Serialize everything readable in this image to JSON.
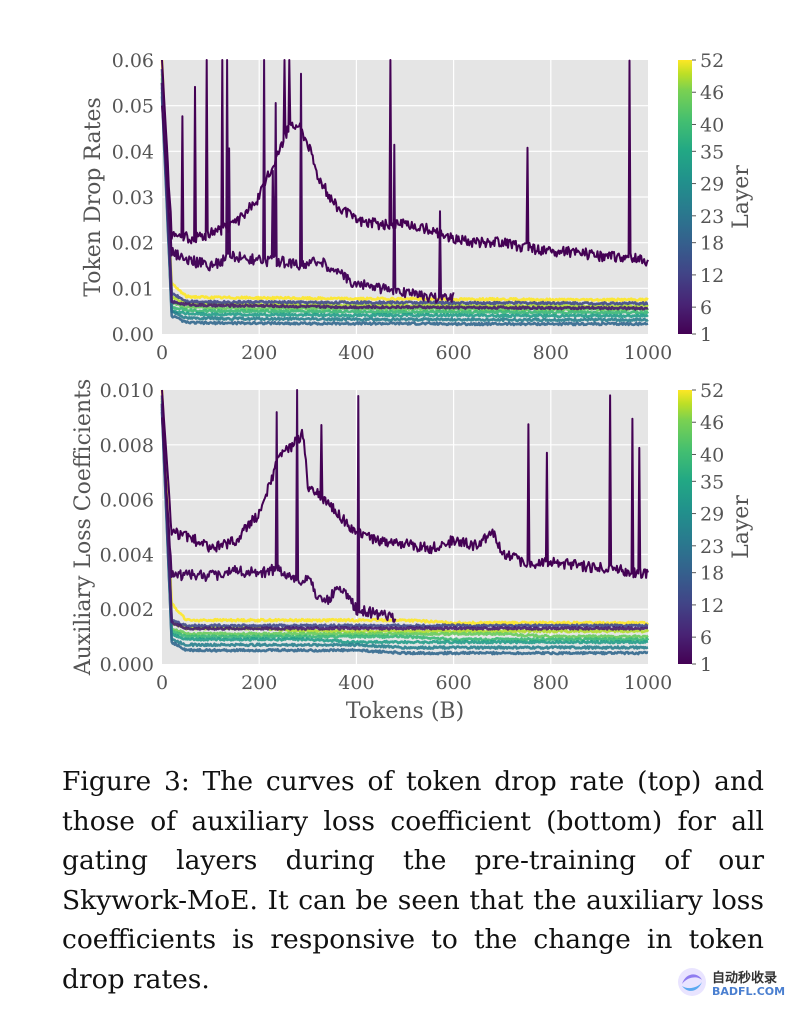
{
  "chart_data": [
    {
      "type": "line",
      "ylabel": "Token Drop Rates",
      "xlabel": "",
      "xlim": [
        0,
        1000
      ],
      "ylim": [
        0,
        0.06
      ],
      "x_ticks": [
        "0",
        "200",
        "400",
        "600",
        "800",
        "1000"
      ],
      "y_ticks": [
        "0.00",
        "0.01",
        "0.02",
        "0.03",
        "0.04",
        "0.05",
        "0.06"
      ],
      "grid": true,
      "colorbar": {
        "label": "Layer",
        "ticks": [
          "1",
          "6",
          "12",
          "18",
          "23",
          "29",
          "35",
          "40",
          "46",
          "52"
        ]
      },
      "series": [
        {
          "layer": 1,
          "x": [
            0,
            20,
            60,
            100,
            150,
            200,
            240,
            260,
            280,
            300,
            320,
            340,
            360,
            400,
            450,
            500,
            550,
            600,
            650,
            700,
            750,
            800,
            850,
            900,
            950,
            1000
          ],
          "values": [
            0.06,
            0.022,
            0.021,
            0.022,
            0.024,
            0.03,
            0.04,
            0.045,
            0.046,
            0.042,
            0.035,
            0.031,
            0.028,
            0.025,
            0.024,
            0.024,
            0.023,
            0.021,
            0.02,
            0.02,
            0.019,
            0.018,
            0.018,
            0.017,
            0.017,
            0.016
          ]
        },
        {
          "layer": 2,
          "x": [
            0,
            20,
            60,
            100,
            150,
            200,
            240,
            280,
            320,
            340,
            360,
            380,
            400,
            500,
            560,
            600
          ],
          "values": [
            0.05,
            0.018,
            0.016,
            0.015,
            0.017,
            0.016,
            0.016,
            0.015,
            0.016,
            0.015,
            0.014,
            0.012,
            0.011,
            0.009,
            0.008,
            0.008
          ]
        },
        {
          "layer": 5,
          "x": [
            0,
            20,
            50,
            100,
            200,
            300,
            400,
            500,
            600,
            700,
            800,
            900,
            1000
          ],
          "values": [
            0.055,
            0.007,
            0.0065,
            0.0062,
            0.0062,
            0.006,
            0.0059,
            0.0059,
            0.0058,
            0.0058,
            0.0057,
            0.0057,
            0.0056
          ]
        },
        {
          "layer": 12,
          "x": [
            0,
            20,
            50,
            100,
            200,
            300,
            400,
            500,
            600,
            700,
            800,
            900,
            1000
          ],
          "values": [
            0.058,
            0.009,
            0.0072,
            0.007,
            0.007,
            0.0069,
            0.0069,
            0.0069,
            0.0068,
            0.0068,
            0.0068,
            0.0067,
            0.0067
          ]
        },
        {
          "layer": 18,
          "x": [
            0,
            20,
            50,
            100,
            200,
            300,
            400,
            500,
            600,
            700,
            800,
            900,
            1000
          ],
          "values": [
            0.052,
            0.004,
            0.0025,
            0.0024,
            0.0024,
            0.0023,
            0.0023,
            0.0023,
            0.0022,
            0.0022,
            0.0022,
            0.0022,
            0.0022
          ]
        },
        {
          "layer": 23,
          "x": [
            0,
            20,
            50,
            100,
            200,
            300,
            400,
            500,
            600,
            700,
            800,
            900,
            1000
          ],
          "values": [
            0.054,
            0.005,
            0.0035,
            0.0034,
            0.0033,
            0.0033,
            0.0032,
            0.0032,
            0.0032,
            0.0031,
            0.0031,
            0.0031,
            0.0031
          ]
        },
        {
          "layer": 29,
          "x": [
            0,
            20,
            50,
            100,
            200,
            300,
            400,
            500,
            600,
            700,
            800,
            900,
            1000
          ],
          "values": [
            0.053,
            0.005,
            0.0045,
            0.0043,
            0.0042,
            0.0042,
            0.0041,
            0.0041,
            0.0041,
            0.004,
            0.004,
            0.004,
            0.004
          ]
        },
        {
          "layer": 35,
          "x": [
            0,
            20,
            50,
            100,
            200,
            300,
            400,
            500,
            600,
            700,
            800,
            900,
            1000
          ],
          "values": [
            0.055,
            0.006,
            0.0052,
            0.005,
            0.005,
            0.0049,
            0.0049,
            0.0048,
            0.0048,
            0.0048,
            0.0047,
            0.0047,
            0.0047
          ]
        },
        {
          "layer": 40,
          "x": [
            0,
            20,
            50,
            100,
            200,
            300,
            400,
            500,
            600,
            700,
            800,
            900,
            1000
          ],
          "values": [
            0.056,
            0.007,
            0.0058,
            0.0057,
            0.0056,
            0.0056,
            0.0055,
            0.0055,
            0.0055,
            0.0054,
            0.0054,
            0.0054,
            0.0054
          ]
        },
        {
          "layer": 46,
          "x": [
            0,
            20,
            50,
            100,
            200,
            300,
            400,
            500,
            600,
            700,
            800,
            900,
            1000
          ],
          "values": [
            0.057,
            0.008,
            0.0066,
            0.0065,
            0.0064,
            0.0064,
            0.0063,
            0.0063,
            0.0062,
            0.0062,
            0.0062,
            0.0062,
            0.0061
          ]
        },
        {
          "layer": 52,
          "x": [
            0,
            20,
            50,
            100,
            200,
            300,
            400,
            500,
            600,
            700,
            800,
            900,
            1000
          ],
          "values": [
            0.06,
            0.011,
            0.0082,
            0.008,
            0.0079,
            0.0078,
            0.0077,
            0.0077,
            0.0076,
            0.0076,
            0.0075,
            0.0075,
            0.0075
          ]
        }
      ]
    },
    {
      "type": "line",
      "ylabel": "Auxiliary Loss Coefficients",
      "xlabel": "Tokens (B)",
      "xlim": [
        0,
        1000
      ],
      "ylim": [
        0,
        0.01
      ],
      "x_ticks": [
        "0",
        "200",
        "400",
        "600",
        "800",
        "1000"
      ],
      "y_ticks": [
        "0.000",
        "0.002",
        "0.004",
        "0.006",
        "0.008",
        "0.010"
      ],
      "grid": true,
      "colorbar": {
        "label": "Layer",
        "ticks": [
          "1",
          "6",
          "12",
          "18",
          "23",
          "29",
          "35",
          "40",
          "46",
          "52"
        ]
      },
      "series": [
        {
          "layer": 1,
          "x": [
            0,
            20,
            60,
            100,
            150,
            200,
            240,
            270,
            290,
            300,
            320,
            360,
            400,
            450,
            500,
            550,
            600,
            650,
            680,
            700,
            750,
            800,
            850,
            900,
            950,
            1000
          ],
          "values": [
            0.01,
            0.0048,
            0.0046,
            0.0042,
            0.0045,
            0.0055,
            0.0075,
            0.008,
            0.0084,
            0.0065,
            0.0062,
            0.0055,
            0.0048,
            0.0045,
            0.0044,
            0.0042,
            0.0045,
            0.0043,
            0.0048,
            0.004,
            0.0037,
            0.0037,
            0.0036,
            0.0035,
            0.0034,
            0.0033
          ]
        },
        {
          "layer": 2,
          "x": [
            0,
            20,
            60,
            100,
            150,
            200,
            240,
            260,
            280,
            300,
            320,
            340,
            360,
            380,
            400,
            450,
            480
          ],
          "values": [
            0.009,
            0.0032,
            0.0033,
            0.0032,
            0.0034,
            0.0033,
            0.0035,
            0.0032,
            0.003,
            0.0031,
            0.0025,
            0.0023,
            0.0028,
            0.0025,
            0.002,
            0.0018,
            0.0017
          ]
        },
        {
          "layer": 5,
          "x": [
            0,
            20,
            50,
            100,
            200,
            300,
            400,
            500,
            600,
            700,
            800,
            900,
            1000
          ],
          "values": [
            0.0095,
            0.0015,
            0.0013,
            0.0013,
            0.0013,
            0.0013,
            0.0013,
            0.0013,
            0.0013,
            0.0013,
            0.0013,
            0.0013,
            0.0013
          ]
        },
        {
          "layer": 12,
          "x": [
            0,
            20,
            50,
            100,
            200,
            300,
            400,
            500,
            600,
            700,
            800,
            900,
            1000
          ],
          "values": [
            0.0098,
            0.0016,
            0.0014,
            0.0014,
            0.0014,
            0.0014,
            0.0014,
            0.0014,
            0.0014,
            0.0014,
            0.0014,
            0.0014,
            0.0014
          ]
        },
        {
          "layer": 18,
          "x": [
            0,
            20,
            50,
            100,
            200,
            300,
            400,
            500,
            600,
            700,
            800,
            900,
            1000
          ],
          "values": [
            0.0092,
            0.0008,
            0.0005,
            0.0005,
            0.0005,
            0.0005,
            0.0005,
            0.0004,
            0.0004,
            0.0004,
            0.0004,
            0.0004,
            0.0004
          ]
        },
        {
          "layer": 23,
          "x": [
            0,
            20,
            50,
            100,
            200,
            300,
            400,
            500,
            600,
            700,
            800,
            900,
            1000
          ],
          "values": [
            0.0093,
            0.0009,
            0.0007,
            0.0007,
            0.0007,
            0.0007,
            0.0007,
            0.0006,
            0.0006,
            0.0006,
            0.0006,
            0.0006,
            0.0006
          ]
        },
        {
          "layer": 29,
          "x": [
            0,
            20,
            50,
            100,
            200,
            300,
            400,
            500,
            600,
            700,
            800,
            900,
            1000
          ],
          "values": [
            0.0094,
            0.0011,
            0.0009,
            0.0009,
            0.0009,
            0.0009,
            0.0008,
            0.0008,
            0.0008,
            0.0008,
            0.0008,
            0.0008,
            0.0008
          ]
        },
        {
          "layer": 35,
          "x": [
            0,
            20,
            50,
            100,
            200,
            300,
            400,
            500,
            600,
            700,
            800,
            900,
            1000
          ],
          "values": [
            0.0095,
            0.0012,
            0.001,
            0.001,
            0.001,
            0.001,
            0.001,
            0.001,
            0.0009,
            0.0009,
            0.0009,
            0.0009,
            0.0009
          ]
        },
        {
          "layer": 40,
          "x": [
            0,
            20,
            50,
            100,
            200,
            300,
            400,
            500,
            600,
            700,
            800,
            900,
            1000
          ],
          "values": [
            0.0096,
            0.0013,
            0.0011,
            0.0011,
            0.0011,
            0.0011,
            0.0011,
            0.0011,
            0.0011,
            0.0011,
            0.001,
            0.001,
            0.001
          ]
        },
        {
          "layer": 46,
          "x": [
            0,
            20,
            50,
            100,
            200,
            300,
            400,
            500,
            600,
            700,
            800,
            900,
            1000
          ],
          "values": [
            0.0097,
            0.0015,
            0.0013,
            0.0013,
            0.0013,
            0.0012,
            0.0012,
            0.0012,
            0.0012,
            0.0012,
            0.0012,
            0.0012,
            0.0012
          ]
        },
        {
          "layer": 52,
          "x": [
            0,
            20,
            50,
            100,
            200,
            300,
            400,
            500,
            600,
            700,
            800,
            900,
            1000
          ],
          "values": [
            0.01,
            0.0022,
            0.0016,
            0.0016,
            0.0016,
            0.0016,
            0.0016,
            0.0016,
            0.0015,
            0.0015,
            0.0015,
            0.0015,
            0.0015
          ]
        }
      ]
    }
  ],
  "caption": "Figure 3: The curves of token drop rate (top) and those of auxiliary loss coefficient (bottom) for all gating layers during the pre-training of our Skywork-MoE. It can be seen that the auxiliary loss coefficients is responsive to the change in token drop rates.",
  "watermark": {
    "line1": "自动秒收录",
    "line2": "BADFL.COM"
  }
}
